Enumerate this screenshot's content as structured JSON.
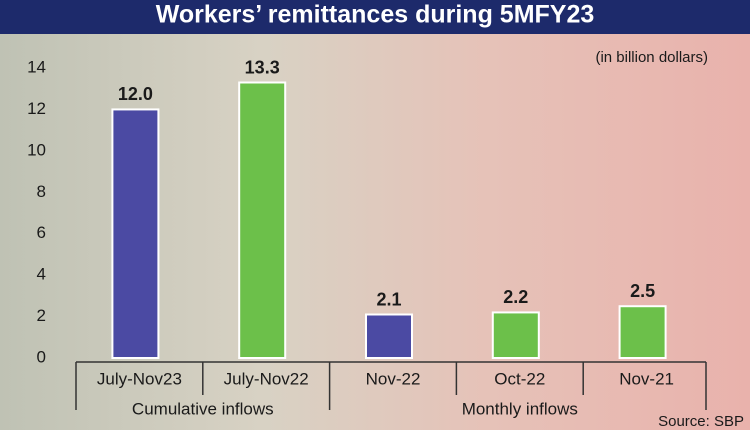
{
  "chart_data": {
    "type": "bar",
    "title": "Workers’ remittances during 5MFY23",
    "subtitle": "(in billion dollars)",
    "source": "Source: SBP",
    "categories": [
      "July-Nov23",
      "July-Nov22",
      "Nov-22",
      "Oct-22",
      "Nov-21"
    ],
    "values": [
      12.0,
      13.3,
      2.1,
      2.2,
      2.5
    ],
    "value_labels": [
      "12.0",
      "13.3",
      "2.1",
      "2.2",
      "2.5"
    ],
    "colors": [
      "#4b4aa3",
      "#6cc04a",
      "#4b4aa3",
      "#6cc04a",
      "#6cc04a"
    ],
    "groups": [
      "Cumulative inflows",
      "Monthly inflows"
    ],
    "ylim": [
      0,
      14
    ],
    "yticks": [
      0,
      2,
      4,
      6,
      8,
      10,
      12,
      14
    ],
    "grid": false
  }
}
